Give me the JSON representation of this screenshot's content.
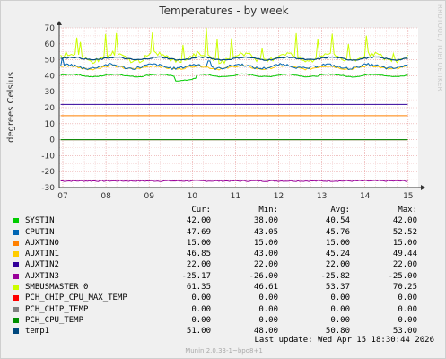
{
  "chart_data": {
    "type": "line",
    "title": "Temperatures - by week",
    "ylabel": "degrees Celsius",
    "ylim": [
      -30,
      70
    ],
    "y_ticks": [
      "70",
      "60",
      "50",
      "40",
      "30",
      "20",
      "10",
      "0",
      "-10",
      "-20",
      "-30"
    ],
    "x_ticks": [
      "07",
      "08",
      "09",
      "10",
      "11",
      "12",
      "13",
      "14",
      "15"
    ],
    "grid": true,
    "series": [
      {
        "name": "SYSTIN",
        "color": "#00cc00",
        "cur": "42.00",
        "min": "38.00",
        "avg": "40.54",
        "max": "42.00"
      },
      {
        "name": "CPUTIN",
        "color": "#0066b3",
        "cur": "47.69",
        "min": "43.05",
        "avg": "45.76",
        "max": "52.52"
      },
      {
        "name": "AUXTIN0",
        "color": "#ff8000",
        "cur": "15.00",
        "min": "15.00",
        "avg": "15.00",
        "max": "15.00"
      },
      {
        "name": "AUXTIN1",
        "color": "#ffcc00",
        "cur": "46.85",
        "min": "43.00",
        "avg": "45.24",
        "max": "49.44"
      },
      {
        "name": "AUXTIN2",
        "color": "#330099",
        "cur": "22.00",
        "min": "22.00",
        "avg": "22.00",
        "max": "22.00"
      },
      {
        "name": "AUXTIN3",
        "color": "#990099",
        "cur": "-25.17",
        "min": "-26.00",
        "avg": "-25.82",
        "max": "-25.00"
      },
      {
        "name": "SMBUSMASTER 0",
        "color": "#ccff00",
        "cur": "61.35",
        "min": "46.61",
        "avg": "53.37",
        "max": "70.25"
      },
      {
        "name": "PCH_CHIP_CPU_MAX_TEMP",
        "color": "#ff0000",
        "cur": "0.00",
        "min": "0.00",
        "avg": "0.00",
        "max": "0.00"
      },
      {
        "name": "PCH_CHIP_TEMP",
        "color": "#808080",
        "cur": "0.00",
        "min": "0.00",
        "avg": "0.00",
        "max": "0.00"
      },
      {
        "name": "PCH_CPU_TEMP",
        "color": "#008f00",
        "cur": "0.00",
        "min": "0.00",
        "avg": "0.00",
        "max": "0.00"
      },
      {
        "name": "temp1",
        "color": "#00487d",
        "cur": "51.00",
        "min": "48.00",
        "avg": "50.80",
        "max": "53.00"
      }
    ]
  },
  "legend": {
    "cur": "Cur:",
    "min": "Min:",
    "avg": "Avg:",
    "max": "Max:"
  },
  "last_update": "Last update:  Wed Apr 15 18:30:44 2026",
  "footer": "Munin 2.0.33-1~bpo8+1",
  "watermark": "RRDTOOL / TOBI OETIKER"
}
